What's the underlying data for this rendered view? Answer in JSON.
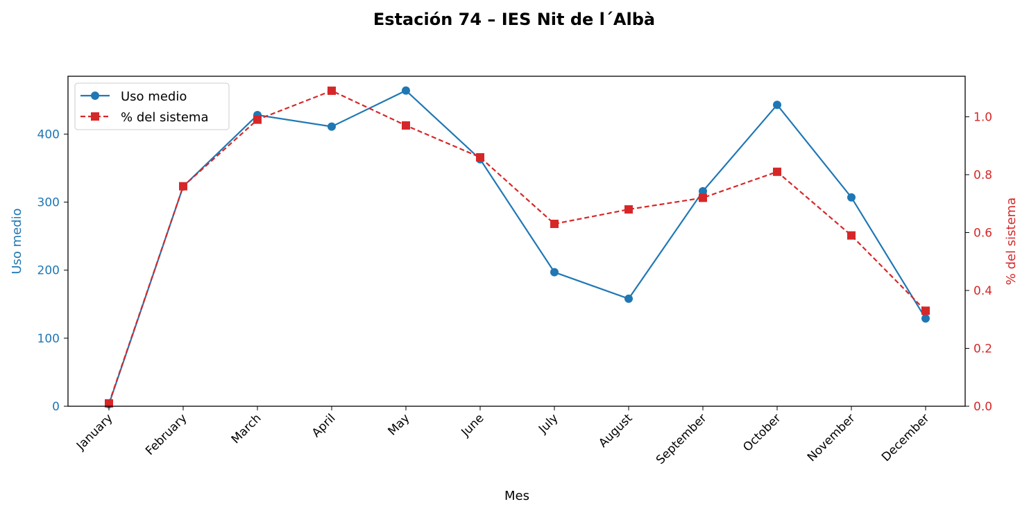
{
  "chart_data": {
    "type": "line",
    "title": "Estación 74 – IES Nit de l´Albà",
    "xlabel": "Mes",
    "categories": [
      "January",
      "February",
      "March",
      "April",
      "May",
      "June",
      "July",
      "August",
      "September",
      "October",
      "November",
      "December"
    ],
    "series": [
      {
        "name": "Uso medio",
        "axis": "left",
        "color": "#1f77b4",
        "marker": "circle",
        "linestyle": "solid",
        "values": [
          3,
          323,
          428,
          411,
          464,
          363,
          197,
          158,
          316,
          443,
          307,
          129
        ]
      },
      {
        "name": "% del sistema",
        "axis": "right",
        "color": "#d62728",
        "marker": "square",
        "linestyle": "dashed",
        "values": [
          0.01,
          0.76,
          0.99,
          1.09,
          0.97,
          0.86,
          0.63,
          0.68,
          0.72,
          0.81,
          0.59,
          0.33
        ]
      }
    ],
    "y_left": {
      "label": "Uso medio",
      "color": "#1f77b4",
      "lim": [
        0,
        485
      ],
      "ticks": [
        0,
        100,
        200,
        300,
        400
      ],
      "tick_labels": [
        "0",
        "100",
        "200",
        "300",
        "400"
      ]
    },
    "y_right": {
      "label": "% del sistema",
      "color": "#d62728",
      "lim": [
        0,
        1.14
      ],
      "ticks": [
        0,
        0.2,
        0.4,
        0.6,
        0.8,
        1.0
      ],
      "tick_labels": [
        "0.0",
        "0.2",
        "0.4",
        "0.6",
        "0.8",
        "1.0"
      ]
    },
    "grid": false,
    "legend": "top-left"
  }
}
